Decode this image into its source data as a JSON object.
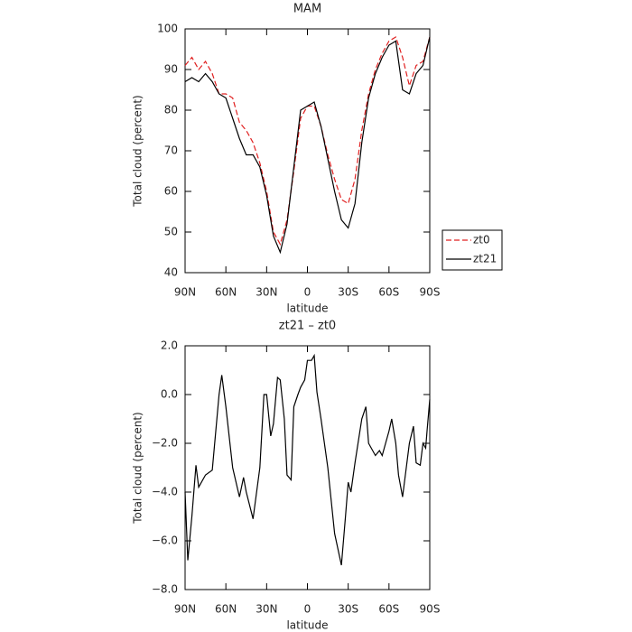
{
  "chart_data": [
    {
      "type": "line",
      "title": "MAM",
      "x_label": "latitude",
      "y_label": "Total cloud (percent)",
      "x": [
        90,
        85,
        80,
        75,
        70,
        65,
        60,
        55,
        50,
        45,
        40,
        35,
        30,
        25,
        20,
        15,
        10,
        5,
        0,
        -5,
        -10,
        -15,
        -20,
        -25,
        -30,
        -35,
        -40,
        -45,
        -50,
        -55,
        -60,
        -65,
        -70,
        -75,
        -80,
        -85,
        -90
      ],
      "series": [
        {
          "name": "zt0",
          "color": "#e02020",
          "linestyle": "dashed",
          "values": [
            91,
            93,
            90,
            92,
            89,
            84,
            84,
            83,
            77,
            75,
            72,
            67,
            60,
            50,
            47,
            53,
            65,
            78,
            81,
            81,
            76,
            69,
            63,
            58,
            57,
            63,
            75,
            84,
            90,
            94,
            97,
            98,
            93,
            86,
            91,
            92,
            98
          ]
        },
        {
          "name": "zt21",
          "color": "#000000",
          "linestyle": "solid",
          "values": [
            87,
            88,
            87,
            89,
            87,
            84,
            83,
            78,
            73,
            69,
            69,
            66,
            59,
            49,
            45,
            52,
            66,
            80,
            81,
            82,
            76,
            68,
            60,
            53,
            51,
            57,
            72,
            83,
            89,
            93,
            96,
            97,
            85,
            84,
            89,
            91,
            98
          ]
        }
      ],
      "xlim": [
        90,
        -90
      ],
      "xticks": [
        {
          "value": 90,
          "label": "90N"
        },
        {
          "value": 60,
          "label": "60N"
        },
        {
          "value": 30,
          "label": "30N"
        },
        0,
        {
          "value": -30,
          "label": "30S"
        },
        {
          "value": -60,
          "label": "60S"
        },
        {
          "value": -90,
          "label": "90S"
        }
      ],
      "ylim": [
        40,
        100
      ],
      "yticks": [
        40,
        50,
        60,
        70,
        80,
        90,
        100
      ],
      "legend": "right"
    },
    {
      "type": "line",
      "title": "zt21 – zt0",
      "x_label": "latitude",
      "y_label": "Total cloud (percent)",
      "x": [
        90,
        88,
        85,
        82,
        80,
        75,
        70,
        65,
        63,
        60,
        55,
        50,
        47,
        45,
        40,
        35,
        32,
        30,
        27,
        25,
        22,
        20,
        17,
        15,
        12,
        10,
        7,
        5,
        2,
        0,
        -3,
        -5,
        -7,
        -10,
        -15,
        -20,
        -25,
        -28,
        -30,
        -32,
        -35,
        -40,
        -43,
        -45,
        -50,
        -53,
        -55,
        -60,
        -62,
        -65,
        -67,
        -70,
        -75,
        -78,
        -80,
        -83,
        -85,
        -87,
        -88,
        -90
      ],
      "series": [
        {
          "color": "#000000",
          "linestyle": "solid",
          "values": [
            -4,
            -6.8,
            -5,
            -2.9,
            -3.8,
            -3.3,
            -3.1,
            0,
            0.8,
            -0.5,
            -3,
            -4.2,
            -3.4,
            -4,
            -5.1,
            -3,
            0,
            0,
            -1.7,
            -1.2,
            0.7,
            0.6,
            -1,
            -3.3,
            -3.5,
            -0.5,
            0,
            0.3,
            0.6,
            1.4,
            1.4,
            1.6,
            0.1,
            -1,
            -3,
            -5.7,
            -7,
            -5,
            -3.6,
            -4,
            -2.8,
            -1,
            -0.5,
            -2,
            -2.5,
            -2.3,
            -2.5,
            -1.5,
            -1,
            -2,
            -3.3,
            -4.2,
            -2,
            -1.3,
            -2.8,
            -2.9,
            -2,
            -2.2,
            -1.5,
            -0.2
          ]
        }
      ],
      "xlim": [
        90,
        -90
      ],
      "xticks": [
        {
          "value": 90,
          "label": "90N"
        },
        {
          "value": 60,
          "label": "60N"
        },
        {
          "value": 30,
          "label": "30N"
        },
        0,
        {
          "value": -30,
          "label": "30S"
        },
        {
          "value": -60,
          "label": "60S"
        },
        {
          "value": -90,
          "label": "90S"
        }
      ],
      "ylim": [
        -8,
        2
      ],
      "yticks": [
        {
          "value": -8,
          "label": "−8.0"
        },
        {
          "value": -6,
          "label": "−6.0"
        },
        {
          "value": -4,
          "label": "−4.0"
        },
        {
          "value": -2,
          "label": "−2.0"
        },
        {
          "value": 0,
          "label": "0.0"
        },
        {
          "value": 2,
          "label": "2.0"
        }
      ]
    }
  ]
}
